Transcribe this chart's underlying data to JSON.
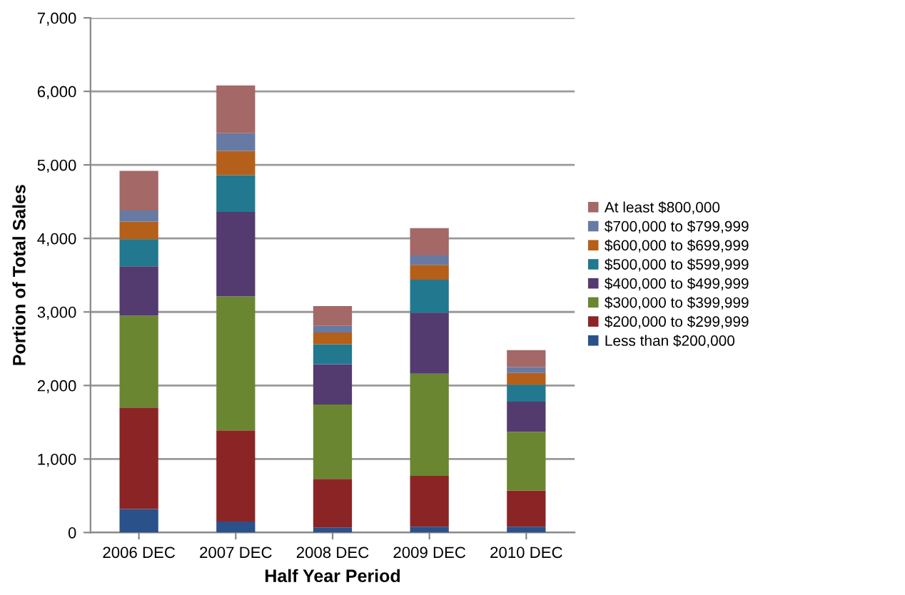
{
  "chart_data": {
    "type": "bar",
    "stacked": true,
    "xlabel": "Half Year Period",
    "ylabel": "Portion of Total Sales",
    "categories": [
      "2006 DEC",
      "2007 DEC",
      "2008 DEC",
      "2009 DEC",
      "2010 DEC"
    ],
    "series": [
      {
        "name": "Less than $200,000",
        "color": "#2a5189",
        "values": [
          320,
          150,
          70,
          80,
          80
        ]
      },
      {
        "name": "$200,000 to $299,999",
        "color": "#8b2525",
        "values": [
          1380,
          1240,
          660,
          690,
          490
        ]
      },
      {
        "name": "$300,000 to $399,999",
        "color": "#6a8630",
        "values": [
          1250,
          1820,
          1010,
          1390,
          800
        ]
      },
      {
        "name": "$400,000 to $499,999",
        "color": "#533a6f",
        "values": [
          670,
          1150,
          550,
          830,
          410
        ]
      },
      {
        "name": "$500,000 to $599,999",
        "color": "#21788f",
        "values": [
          370,
          500,
          270,
          450,
          230
        ]
      },
      {
        "name": "$600,000 to $699,999",
        "color": "#b45f1a",
        "values": [
          240,
          330,
          160,
          200,
          160
        ]
      },
      {
        "name": "$700,000 to $799,999",
        "color": "#667aa3",
        "values": [
          150,
          240,
          90,
          130,
          80
        ]
      },
      {
        "name": "At least $800,000",
        "color": "#a46866",
        "values": [
          540,
          650,
          270,
          370,
          230
        ]
      }
    ],
    "ylim": [
      0,
      7000
    ],
    "yticks": [
      {
        "value": 0,
        "label": "0"
      },
      {
        "value": 1000,
        "label": "1,000"
      },
      {
        "value": 2000,
        "label": "2,000"
      },
      {
        "value": 3000,
        "label": "3,000"
      },
      {
        "value": 4000,
        "label": "4,000"
      },
      {
        "value": 5000,
        "label": "5,000"
      },
      {
        "value": 6000,
        "label": "6,000"
      },
      {
        "value": 7000,
        "label": "7,000"
      }
    ],
    "grid": "y",
    "legend": "right"
  }
}
